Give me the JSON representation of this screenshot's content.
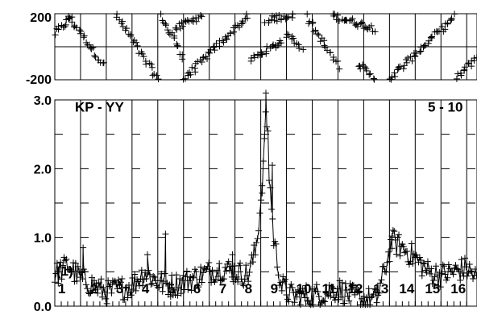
{
  "chart_data": [
    {
      "type": "scatter",
      "panel": "phase",
      "ytick_labels": [
        "200",
        "-200"
      ],
      "ylim": [
        -200,
        200
      ],
      "xlim": [
        0,
        16.4
      ],
      "grid": true,
      "marker": "plus",
      "series": [
        {
          "segments": [
            {
              "x0": 0.0,
              "x1": 0.6,
              "y0": 80,
              "y1": 170
            },
            {
              "x0": 0.5,
              "x1": 1.9,
              "y0": 190,
              "y1": -110
            },
            {
              "x0": 2.4,
              "x1": 4.0,
              "y0": 190,
              "y1": -195
            },
            {
              "x0": 4.1,
              "x1": 5.0,
              "y0": 190,
              "y1": -60
            },
            {
              "x0": 4.6,
              "x1": 5.7,
              "y0": 100,
              "y1": 190
            },
            {
              "x0": 5.0,
              "x1": 7.5,
              "y0": -195,
              "y1": 185
            },
            {
              "x0": 7.6,
              "x1": 8.8,
              "y0": -80,
              "y1": 30
            },
            {
              "x0": 8.2,
              "x1": 9.3,
              "y0": 160,
              "y1": 195
            },
            {
              "x0": 9.0,
              "x1": 9.6,
              "y0": 80,
              "y1": 0
            },
            {
              "x0": 9.8,
              "x1": 11.0,
              "y0": 180,
              "y1": -120
            },
            {
              "x0": 10.8,
              "x1": 12.4,
              "y0": 190,
              "y1": 110
            },
            {
              "x0": 11.8,
              "x1": 12.4,
              "y0": -100,
              "y1": -195
            },
            {
              "x0": 13.0,
              "x1": 15.5,
              "y0": -195,
              "y1": 180
            },
            {
              "x0": 15.6,
              "x1": 16.4,
              "y0": -190,
              "y1": -60
            }
          ]
        }
      ]
    },
    {
      "type": "line",
      "panel": "amplitude",
      "title": "KP - YY",
      "annotation": "5 - 10",
      "ytick_labels": [
        "3.0",
        "2.0",
        "1.0",
        "0.0"
      ],
      "ylim": [
        0,
        3.0
      ],
      "xlim": [
        0,
        16.4
      ],
      "grid": true,
      "marker": "plus",
      "channel_labels": [
        "(1)",
        "1",
        "2",
        "3",
        "4",
        "5",
        "6",
        "7",
        "8",
        "9",
        "10",
        "11",
        "12",
        "13",
        "14",
        "15",
        "16"
      ],
      "series": [
        {
          "baseline": [
            {
              "x": 0.0,
              "y": 0.45
            },
            {
              "x": 0.5,
              "y": 0.6
            },
            {
              "x": 1.0,
              "y": 0.4
            },
            {
              "x": 2.0,
              "y": 0.2
            },
            {
              "x": 3.0,
              "y": 0.3
            },
            {
              "x": 3.5,
              "y": 0.5
            },
            {
              "x": 4.0,
              "y": 0.35
            },
            {
              "x": 4.5,
              "y": 0.3
            },
            {
              "x": 5.0,
              "y": 0.35
            },
            {
              "x": 6.0,
              "y": 0.5
            },
            {
              "x": 6.5,
              "y": 0.55
            },
            {
              "x": 7.0,
              "y": 0.5
            },
            {
              "x": 7.5,
              "y": 0.45
            },
            {
              "x": 7.8,
              "y": 0.8
            },
            {
              "x": 8.0,
              "y": 1.5
            },
            {
              "x": 8.2,
              "y": 2.6
            },
            {
              "x": 8.5,
              "y": 1.0
            },
            {
              "x": 8.8,
              "y": 0.3
            },
            {
              "x": 9.2,
              "y": 0.15
            },
            {
              "x": 10.0,
              "y": 0.15
            },
            {
              "x": 11.0,
              "y": 0.25
            },
            {
              "x": 11.5,
              "y": 0.15
            },
            {
              "x": 12.0,
              "y": 0.1
            },
            {
              "x": 12.5,
              "y": 0.1
            },
            {
              "x": 12.8,
              "y": 0.5
            },
            {
              "x": 13.1,
              "y": 0.95
            },
            {
              "x": 13.5,
              "y": 0.85
            },
            {
              "x": 14.0,
              "y": 0.7
            },
            {
              "x": 14.5,
              "y": 0.5
            },
            {
              "x": 15.0,
              "y": 0.45
            },
            {
              "x": 16.0,
              "y": 0.55
            },
            {
              "x": 16.4,
              "y": 0.4
            }
          ],
          "peaks": [
            {
              "x": 8.2,
              "y": 3.1
            },
            {
              "x": 8.45,
              "y": 2.05
            },
            {
              "x": 8.05,
              "y": 1.75
            },
            {
              "x": 1.1,
              "y": 0.85
            },
            {
              "x": 4.3,
              "y": 1.05
            },
            {
              "x": 13.1,
              "y": 1.02
            },
            {
              "x": 3.6,
              "y": 0.75
            },
            {
              "x": 6.9,
              "y": 0.75
            }
          ]
        }
      ]
    }
  ]
}
